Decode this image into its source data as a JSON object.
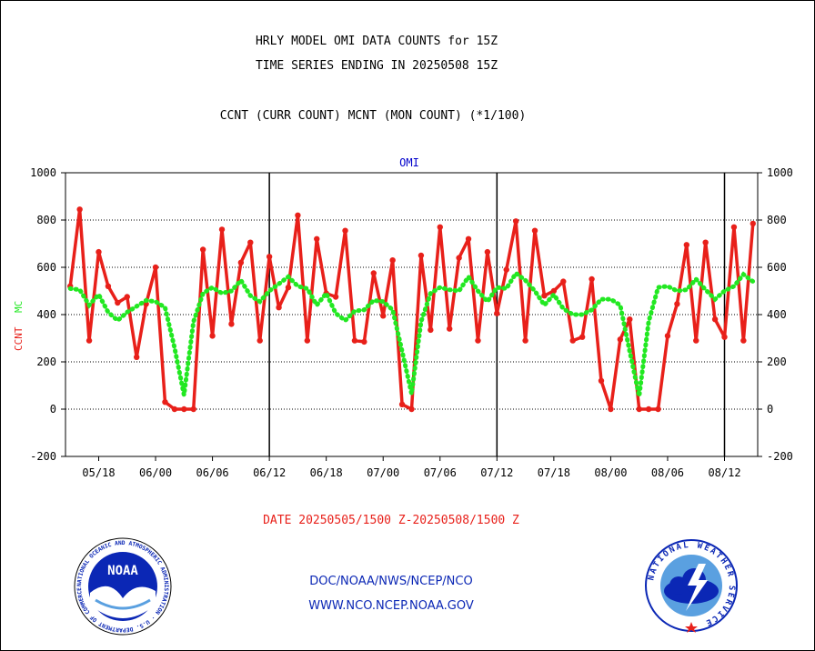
{
  "header": {
    "line1": "HRLY MODEL OMI DATA COUNTS for 15Z",
    "line2": "TIME SERIES ENDING IN 20250508 15Z",
    "line3": "CCNT (CURR COUNT) MCNT (MON COUNT) (*1/100)"
  },
  "footer": {
    "date_range": "DATE 20250505/1500 Z-20250508/1500 Z",
    "credit1": "DOC/NOAA/NWS/NCEP/NCO",
    "credit2": "WWW.NCO.NCEP.NOAA.GOV"
  },
  "logos": {
    "noaa_text": "NOAA",
    "noaa_ring": "NATIONAL OCEANIC AND ATMOSPHERIC ADMINISTRATION · U.S. DEPARTMENT OF COMMERCE ·",
    "nws_ring": "NATIONAL WEATHER SERVICE"
  },
  "chart_data": {
    "type": "line",
    "title": "OMI",
    "ylabel_series1": "CCNT",
    "ylabel_series2": "MCNT",
    "ylim": [
      -200,
      1000
    ],
    "yticks": [
      -200,
      0,
      200,
      400,
      600,
      800,
      1000
    ],
    "x_tick_labels": [
      "05/18",
      "06/00",
      "06/06",
      "06/12",
      "06/18",
      "07/00",
      "07/06",
      "07/12",
      "07/18",
      "08/00",
      "08/06",
      "08/12"
    ],
    "x_tick_index": [
      3,
      9,
      15,
      21,
      27,
      33,
      39,
      45,
      51,
      57,
      63,
      69
    ],
    "day_boundaries_index": [
      21,
      45,
      69
    ],
    "grid": true,
    "colors": {
      "CCNT": "#e8201a",
      "MCNT": "#22e822",
      "axis_label": "#e8201a",
      "title": "#0000cc"
    },
    "series": [
      {
        "name": "CCNT",
        "values": [
          520,
          845,
          290,
          665,
          520,
          450,
          475,
          220,
          445,
          600,
          30,
          0,
          0,
          0,
          675,
          310,
          760,
          360,
          620,
          705,
          290,
          645,
          430,
          515,
          820,
          290,
          720,
          490,
          475,
          755,
          290,
          285,
          575,
          395,
          630,
          20,
          0,
          650,
          335,
          770,
          340,
          640,
          720,
          290,
          665,
          405,
          590,
          795,
          290,
          755,
          480,
          500,
          540,
          290,
          305,
          550,
          120,
          0,
          295,
          380,
          0,
          0,
          0,
          310,
          445,
          695,
          290,
          705,
          380,
          305,
          770,
          290,
          785
        ]
      },
      {
        "name": "MCNT",
        "values": [
          510,
          505,
          440,
          485,
          410,
          375,
          410,
          435,
          460,
          455,
          430,
          260,
          60,
          370,
          490,
          515,
          490,
          500,
          545,
          480,
          455,
          500,
          530,
          560,
          520,
          510,
          440,
          490,
          405,
          375,
          415,
          420,
          460,
          455,
          420,
          245,
          65,
          370,
          490,
          515,
          505,
          500,
          560,
          500,
          455,
          515,
          510,
          575,
          545,
          500,
          440,
          485,
          425,
          400,
          400,
          420,
          465,
          465,
          440,
          245,
          55,
          370,
          515,
          520,
          500,
          505,
          550,
          505,
          465,
          500,
          520,
          570,
          540
        ]
      }
    ]
  }
}
